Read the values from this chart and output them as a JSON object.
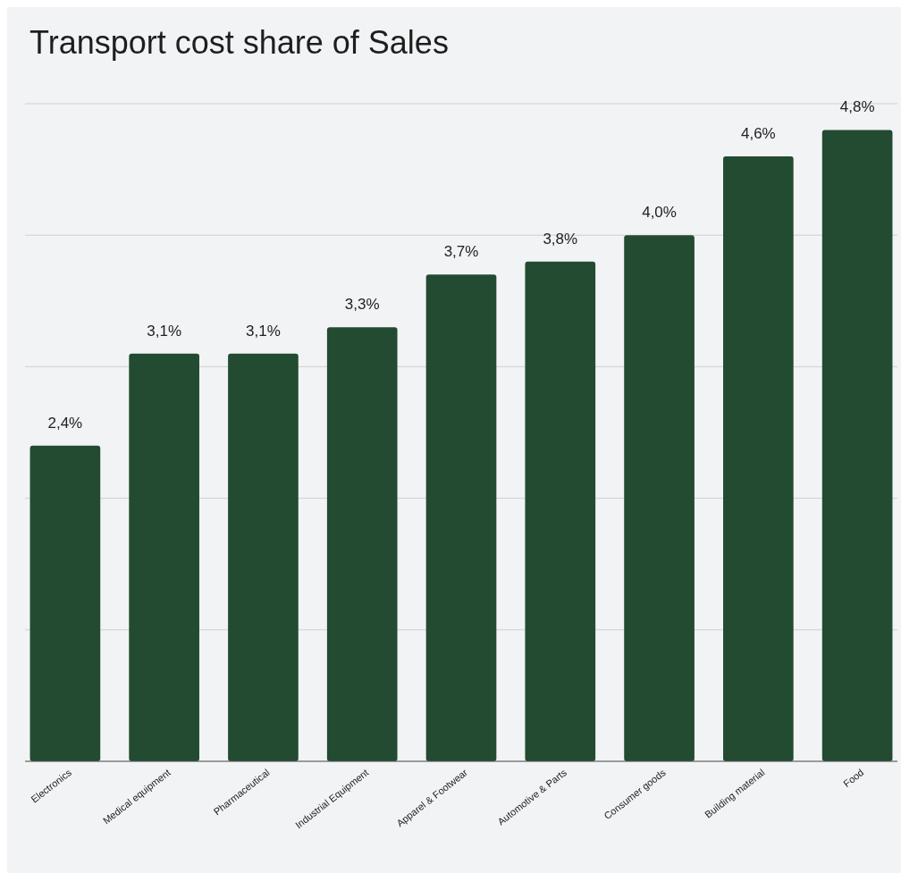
{
  "chart_data": {
    "type": "bar",
    "title": "Transport cost share of Sales",
    "categories": [
      "Electronics",
      "Medical equipment",
      "Pharmaceutical",
      "Industrial Equipment",
      "Apparel & Footwear",
      "Automotive & Parts",
      "Consumer goods",
      "Building material",
      "Food"
    ],
    "values": [
      2.4,
      3.1,
      3.1,
      3.3,
      3.7,
      3.8,
      4.0,
      4.6,
      4.8
    ],
    "value_labels": [
      "2,4%",
      "3,1%",
      "3,1%",
      "3,3%",
      "3,7%",
      "3,8%",
      "4,0%",
      "4,6%",
      "4,8%"
    ],
    "color": "#224b31",
    "ylim": [
      0,
      5
    ],
    "yticks": [
      {
        "value": 0,
        "label": null
      },
      {
        "value": 1,
        "label": null
      },
      {
        "value": 2,
        "label": null
      },
      {
        "value": 3,
        "label": null
      },
      {
        "value": 4,
        "label": null
      },
      {
        "value": 5,
        "label": null
      }
    ],
    "tick_labels": "x",
    "grid": "y"
  }
}
